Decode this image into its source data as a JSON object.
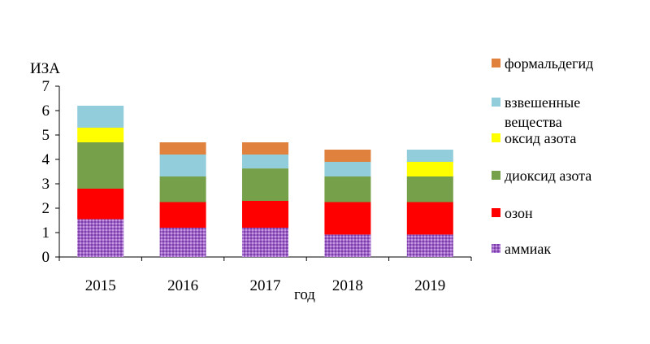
{
  "chart_data": {
    "type": "bar",
    "stacked": true,
    "title": "",
    "xlabel": "год",
    "ylabel": "ИЗА",
    "ylim": [
      0,
      7
    ],
    "yticks": [
      0,
      1,
      2,
      3,
      4,
      5,
      6,
      7
    ],
    "categories": [
      "2015",
      "2016",
      "2017",
      "2018",
      "2019"
    ],
    "series": [
      {
        "name": "аммиак",
        "color": "#9b59b6",
        "pattern": "checker-dots",
        "values": [
          1.55,
          1.2,
          1.2,
          0.92,
          0.92
        ]
      },
      {
        "name": "озон",
        "color": "#ff0000",
        "values": [
          1.25,
          1.05,
          1.1,
          1.33,
          1.33
        ]
      },
      {
        "name": "диоксид азота",
        "color": "#77a04a",
        "values": [
          1.9,
          1.05,
          1.33,
          1.05,
          1.05
        ]
      },
      {
        "name": "оксид азота",
        "color": "#ffff00",
        "values": [
          0.6,
          0,
          0,
          0,
          0.6
        ]
      },
      {
        "name": "взвешенные вещества",
        "color": "#92cddc",
        "values": [
          0.9,
          0.9,
          0.57,
          0.6,
          0.5
        ]
      },
      {
        "name": "формальдегид",
        "color": "#e0823d",
        "values": [
          0,
          0.5,
          0.5,
          0.5,
          0
        ]
      }
    ],
    "legend": {
      "position": "right",
      "order": [
        "формальдегид",
        "взвешенные вещества",
        "оксид азота",
        "диоксид азота",
        "озон",
        "аммиак"
      ]
    },
    "grid": false
  }
}
